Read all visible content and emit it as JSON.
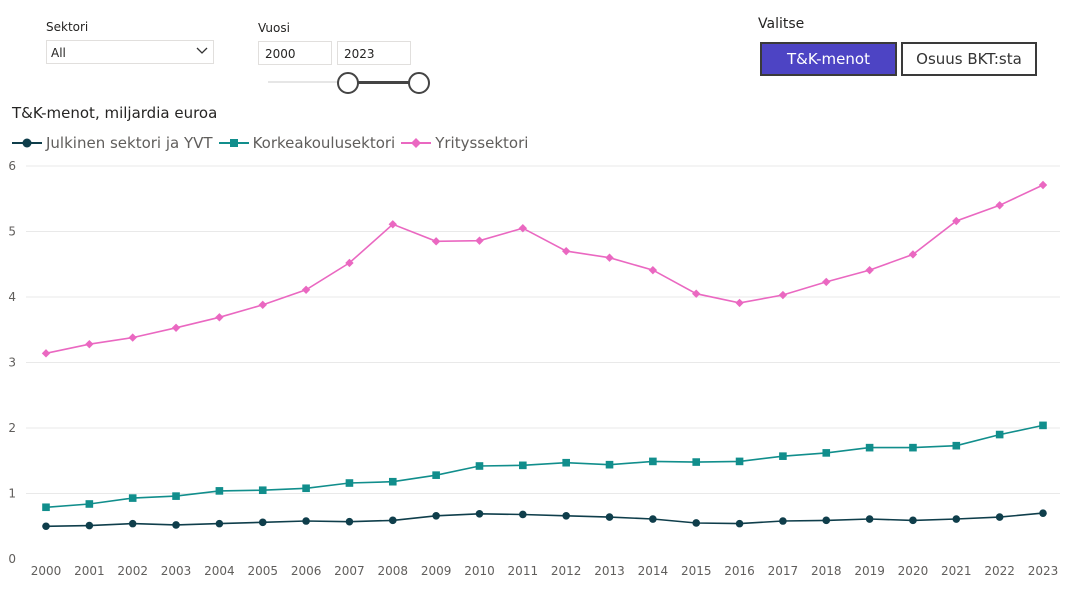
{
  "filters": {
    "sector_label": "Sektori",
    "sector_value": "All",
    "year_label": "Vuosi",
    "year_from": "2000",
    "year_to": "2023",
    "select_label": "Valitse",
    "btn_rd": "T&K-menot",
    "btn_gdp": "Osuus BKT:sta"
  },
  "chart_data": {
    "type": "line",
    "title": "T&K-menot, miljardia euroa",
    "xlabel": "",
    "ylabel": "",
    "ylim": [
      0,
      6
    ],
    "yticks": [
      0,
      1,
      2,
      3,
      4,
      5,
      6
    ],
    "grid": true,
    "legend_position": "top-left",
    "x": [
      "2000",
      "2001",
      "2002",
      "2003",
      "2004",
      "2005",
      "2006",
      "2007",
      "2008",
      "2009",
      "2010",
      "2011",
      "2012",
      "2013",
      "2014",
      "2015",
      "2016",
      "2017",
      "2018",
      "2019",
      "2020",
      "2021",
      "2022",
      "2023"
    ],
    "series": [
      {
        "name": "Julkinen sektori ja YVT",
        "color": "#0f3e4b",
        "marker": "circle",
        "values": [
          0.5,
          0.51,
          0.54,
          0.52,
          0.54,
          0.56,
          0.58,
          0.57,
          0.59,
          0.66,
          0.69,
          0.68,
          0.66,
          0.64,
          0.61,
          0.55,
          0.54,
          0.58,
          0.59,
          0.61,
          0.59,
          0.61,
          0.64,
          0.7
        ]
      },
      {
        "name": "Korkeakoulusektori",
        "color": "#118e8c",
        "marker": "square",
        "values": [
          0.79,
          0.84,
          0.93,
          0.96,
          1.04,
          1.05,
          1.08,
          1.16,
          1.18,
          1.28,
          1.42,
          1.43,
          1.47,
          1.44,
          1.49,
          1.48,
          1.49,
          1.57,
          1.62,
          1.7,
          1.7,
          1.73,
          1.9,
          2.04
        ]
      },
      {
        "name": "Yrityssektori",
        "color": "#ea68c1",
        "marker": "diamond",
        "values": [
          3.14,
          3.28,
          3.38,
          3.53,
          3.69,
          3.88,
          4.11,
          4.52,
          5.11,
          4.85,
          4.86,
          5.05,
          4.7,
          4.6,
          4.41,
          4.05,
          3.91,
          4.03,
          4.23,
          4.41,
          4.65,
          5.16,
          5.4,
          5.71
        ]
      }
    ]
  }
}
